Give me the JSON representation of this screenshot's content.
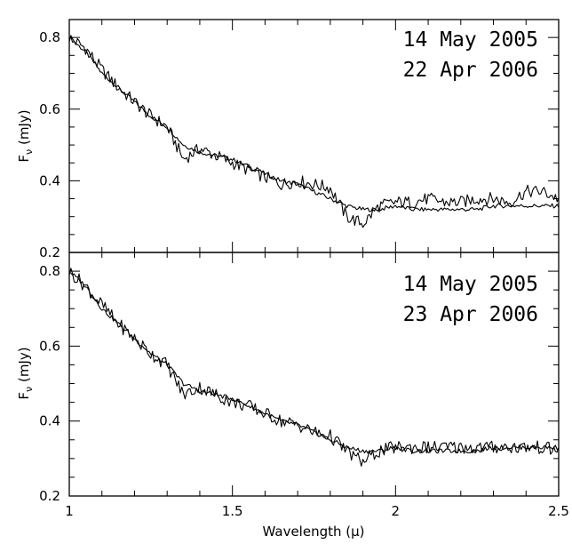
{
  "chart_data": [
    {
      "type": "line",
      "legend": [
        "14 May 2005",
        "22 Apr 2006"
      ],
      "ylabel": "F_ν (mJy)",
      "ylabel_main": "F",
      "ylabel_sub": "ν",
      "ylabel_unit": " (mJy)",
      "xlim": [
        1.0,
        2.5
      ],
      "ylim": [
        0.2,
        0.85
      ],
      "yticks": [
        "0.2",
        "0.4",
        "0.6",
        "0.8"
      ],
      "series": [
        {
          "x": [
            1.0,
            1.05,
            1.1,
            1.15,
            1.2,
            1.25,
            1.3,
            1.35,
            1.4,
            1.45,
            1.5,
            1.55,
            1.6,
            1.65,
            1.7,
            1.75,
            1.8,
            1.85,
            1.9,
            1.95,
            2.0,
            2.05,
            2.1,
            2.15,
            2.2,
            2.25,
            2.3,
            2.35,
            2.4,
            2.45,
            2.5
          ],
          "values": [
            0.8,
            0.76,
            0.7,
            0.66,
            0.62,
            0.58,
            0.55,
            0.5,
            0.48,
            0.47,
            0.46,
            0.44,
            0.42,
            0.4,
            0.39,
            0.37,
            0.35,
            0.33,
            0.32,
            0.32,
            0.33,
            0.32,
            0.32,
            0.32,
            0.32,
            0.32,
            0.33,
            0.33,
            0.33,
            0.33,
            0.33
          ]
        },
        {
          "x": [
            1.0,
            1.05,
            1.1,
            1.15,
            1.2,
            1.25,
            1.3,
            1.35,
            1.4,
            1.45,
            1.5,
            1.55,
            1.6,
            1.65,
            1.7,
            1.75,
            1.8,
            1.85,
            1.9,
            1.95,
            2.0,
            2.05,
            2.1,
            2.15,
            2.2,
            2.25,
            2.3,
            2.35,
            2.4,
            2.45,
            2.5
          ],
          "values": [
            0.8,
            0.77,
            0.71,
            0.66,
            0.62,
            0.58,
            0.55,
            0.46,
            0.49,
            0.47,
            0.45,
            0.43,
            0.41,
            0.39,
            0.4,
            0.39,
            0.38,
            0.3,
            0.28,
            0.33,
            0.34,
            0.34,
            0.35,
            0.34,
            0.34,
            0.35,
            0.35,
            0.34,
            0.37,
            0.37,
            0.35
          ]
        }
      ]
    },
    {
      "type": "line",
      "legend": [
        "14 May 2005",
        "23 Apr 2006"
      ],
      "xlabel": "Wavelength (μ)",
      "ylabel": "F_ν (mJy)",
      "ylabel_main": "F",
      "ylabel_sub": "ν",
      "ylabel_unit": " (mJy)",
      "xlim": [
        1.0,
        2.5
      ],
      "ylim": [
        0.2,
        0.85
      ],
      "xticks": [
        "1",
        "1.5",
        "2",
        "2.5"
      ],
      "yticks": [
        "0.2",
        "0.4",
        "0.6",
        "0.8"
      ],
      "series": [
        {
          "x": [
            1.0,
            1.05,
            1.1,
            1.15,
            1.2,
            1.25,
            1.3,
            1.35,
            1.4,
            1.45,
            1.5,
            1.55,
            1.6,
            1.65,
            1.7,
            1.75,
            1.8,
            1.85,
            1.9,
            1.95,
            2.0,
            2.05,
            2.1,
            2.15,
            2.2,
            2.25,
            2.3,
            2.35,
            2.4,
            2.45,
            2.5
          ],
          "values": [
            0.8,
            0.76,
            0.7,
            0.66,
            0.62,
            0.58,
            0.55,
            0.5,
            0.48,
            0.47,
            0.46,
            0.44,
            0.42,
            0.4,
            0.39,
            0.37,
            0.35,
            0.33,
            0.32,
            0.32,
            0.33,
            0.32,
            0.32,
            0.32,
            0.32,
            0.32,
            0.33,
            0.33,
            0.33,
            0.33,
            0.33
          ]
        },
        {
          "x": [
            1.0,
            1.05,
            1.1,
            1.15,
            1.2,
            1.25,
            1.3,
            1.35,
            1.4,
            1.45,
            1.5,
            1.55,
            1.6,
            1.65,
            1.7,
            1.75,
            1.8,
            1.85,
            1.9,
            1.95,
            2.0,
            2.05,
            2.1,
            2.15,
            2.2,
            2.25,
            2.3,
            2.35,
            2.4,
            2.45,
            2.5
          ],
          "values": [
            0.8,
            0.76,
            0.71,
            0.66,
            0.62,
            0.58,
            0.55,
            0.47,
            0.49,
            0.47,
            0.45,
            0.44,
            0.42,
            0.4,
            0.39,
            0.37,
            0.36,
            0.32,
            0.29,
            0.32,
            0.33,
            0.33,
            0.33,
            0.33,
            0.33,
            0.33,
            0.33,
            0.33,
            0.33,
            0.33,
            0.32
          ]
        }
      ]
    }
  ]
}
